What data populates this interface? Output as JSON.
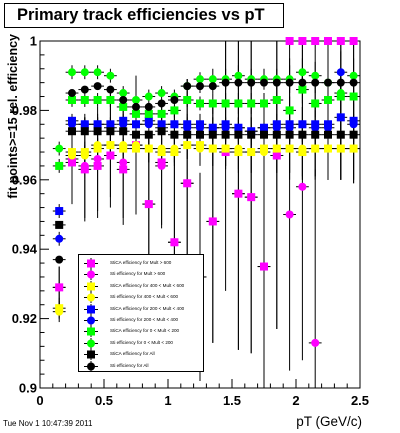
{
  "timestamp": "Tue Nov  1 10:47:39 2011",
  "chart_data": {
    "type": "scatter",
    "title": "Primary track efficiencies vs pT",
    "xlabel": "pT (GeV/c)",
    "ylabel": "fit points>=15 rel. efficiency",
    "xlim": [
      0,
      2.5
    ],
    "ylim": [
      0.9,
      1.0
    ],
    "x_ticks": [
      0,
      0.5,
      1,
      1.5,
      2,
      2.5
    ],
    "x_tick_labels": [
      "0",
      "0.5",
      "1",
      "1.5",
      "2",
      "2.5"
    ],
    "y_ticks": [
      0.9,
      0.92,
      0.94,
      0.96,
      0.98,
      1.0
    ],
    "y_tick_labels": [
      "0.9",
      "0.92",
      "0.94",
      "0.96",
      "0.98",
      "1"
    ],
    "grid": false,
    "legend_position": "bottom-left",
    "x": [
      0.15,
      0.25,
      0.35,
      0.45,
      0.55,
      0.65,
      0.75,
      0.85,
      0.95,
      1.05,
      1.15,
      1.25,
      1.35,
      1.45,
      1.55,
      1.65,
      1.75,
      1.85,
      1.95,
      2.05,
      2.15,
      2.25,
      2.35,
      2.45
    ],
    "series": [
      {
        "name": "StiCA efficiency  for Mult > 600",
        "marker": "square",
        "color": "#ff00ff",
        "values": [
          0.929,
          0.965,
          0.963,
          0.964,
          0.967,
          0.963,
          0.97,
          0.953,
          0.965,
          0.942,
          0.959,
          0.932,
          0.948,
          0.968,
          0.956,
          0.955,
          0.935,
          0.967,
          1.0,
          1.0,
          1.0,
          1.0,
          1.0,
          1.0
        ],
        "errors": [
          0.006,
          0.012,
          0.015,
          0.015,
          0.015,
          0.016,
          0.02,
          0.02,
          0.018,
          0.03,
          0.03,
          0.03,
          0.035,
          0.04,
          0.045,
          0.045,
          0.05,
          0.05,
          0.04,
          0.04,
          0.04,
          0.04,
          0.04,
          0.04
        ]
      },
      {
        "name": "Sti efficiency  for Mult > 600",
        "marker": "circle",
        "color": "#ff00ff",
        "values": [
          0.929,
          0.966,
          0.964,
          0.966,
          0.97,
          0.965,
          0.97,
          0.953,
          0.964,
          0.942,
          0.959,
          0.932,
          0.948,
          1.003,
          0.956,
          0.955,
          0.935,
          0.967,
          0.95,
          0.958,
          0.913,
          1.0,
          1.0,
          1.0
        ],
        "errors": [
          0.006,
          0.012,
          0.015,
          0.015,
          0.015,
          0.016,
          0.02,
          0.02,
          0.018,
          0.03,
          0.03,
          0.03,
          0.035,
          0.04,
          0.045,
          0.045,
          0.05,
          0.05,
          0.045,
          0.05,
          0.05,
          0.04,
          0.04,
          0.04
        ]
      },
      {
        "name": "StiCA efficiency  for 400 < Mult < 600",
        "marker": "square",
        "color": "#ffff00",
        "values": [
          0.923,
          0.968,
          0.968,
          0.969,
          0.97,
          0.969,
          0.969,
          0.969,
          0.968,
          0.968,
          0.97,
          0.97,
          0.969,
          0.969,
          0.968,
          0.968,
          0.969,
          0.969,
          0.969,
          0.968,
          0.969,
          0.969,
          0.969,
          0.969
        ],
        "errors": [
          0.003,
          0.003,
          0.003,
          0.003,
          0.003,
          0.003,
          0.003,
          0.004,
          0.004,
          0.004,
          0.004,
          0.005,
          0.005,
          0.005,
          0.006,
          0.006,
          0.006,
          0.007,
          0.007,
          0.008,
          0.008,
          0.009,
          0.009,
          0.01
        ]
      },
      {
        "name": "Sti efficiency  for 400 < Mult < 600",
        "marker": "circle",
        "color": "#ffff00",
        "values": [
          0.922,
          0.967,
          0.967,
          0.97,
          0.97,
          0.97,
          0.97,
          0.969,
          0.969,
          0.969,
          0.97,
          0.969,
          0.969,
          0.969,
          0.969,
          0.968,
          0.968,
          0.969,
          0.969,
          0.969,
          0.969,
          0.969,
          0.969,
          0.969
        ],
        "errors": [
          0.003,
          0.003,
          0.003,
          0.003,
          0.003,
          0.003,
          0.003,
          0.004,
          0.004,
          0.004,
          0.004,
          0.005,
          0.005,
          0.005,
          0.006,
          0.006,
          0.006,
          0.007,
          0.007,
          0.008,
          0.008,
          0.009,
          0.009,
          0.01
        ]
      },
      {
        "name": "StiCA efficiency  for 200 < Mult < 400",
        "marker": "square",
        "color": "#0000ff",
        "values": [
          0.951,
          0.977,
          0.976,
          0.976,
          0.976,
          0.977,
          0.976,
          0.977,
          0.976,
          0.976,
          0.976,
          0.976,
          0.975,
          0.976,
          0.975,
          0.974,
          0.975,
          0.976,
          0.976,
          0.976,
          0.976,
          0.976,
          0.978,
          0.977
        ],
        "errors": [
          0.002,
          0.002,
          0.002,
          0.002,
          0.002,
          0.002,
          0.002,
          0.002,
          0.002,
          0.003,
          0.003,
          0.003,
          0.003,
          0.003,
          0.003,
          0.004,
          0.004,
          0.004,
          0.004,
          0.005,
          0.005,
          0.005,
          0.006,
          0.006
        ]
      },
      {
        "name": "Sti efficiency  for 200 < Mult < 400",
        "marker": "circle",
        "color": "#0000ff",
        "values": [
          0.943,
          0.976,
          0.976,
          0.976,
          0.975,
          0.976,
          0.976,
          0.976,
          0.975,
          0.976,
          0.975,
          0.975,
          0.975,
          0.975,
          0.975,
          0.974,
          0.975,
          0.975,
          0.975,
          0.976,
          0.975,
          0.975,
          0.991,
          0.976
        ],
        "errors": [
          0.002,
          0.002,
          0.002,
          0.002,
          0.002,
          0.002,
          0.002,
          0.002,
          0.002,
          0.003,
          0.003,
          0.003,
          0.003,
          0.003,
          0.003,
          0.004,
          0.004,
          0.004,
          0.004,
          0.005,
          0.005,
          0.005,
          0.006,
          0.006
        ]
      },
      {
        "name": "StiCA efficiency  for 0 < Mult < 200",
        "marker": "square",
        "color": "#00ff00",
        "values": [
          0.964,
          0.983,
          0.983,
          0.983,
          0.983,
          0.981,
          0.979,
          0.979,
          0.979,
          0.98,
          0.983,
          0.982,
          0.982,
          0.982,
          0.982,
          0.982,
          0.982,
          0.983,
          0.98,
          0.986,
          0.982,
          0.983,
          0.984,
          0.984
        ],
        "errors": [
          0.002,
          0.002,
          0.002,
          0.002,
          0.002,
          0.002,
          0.002,
          0.002,
          0.002,
          0.002,
          0.002,
          0.002,
          0.003,
          0.003,
          0.003,
          0.003,
          0.003,
          0.003,
          0.004,
          0.004,
          0.004,
          0.004,
          0.005,
          0.005
        ]
      },
      {
        "name": "Sti efficiency  for 0 < Mult < 200",
        "marker": "circle",
        "color": "#00ff00",
        "values": [
          0.969,
          0.991,
          0.991,
          0.991,
          0.99,
          0.985,
          0.983,
          0.984,
          0.985,
          0.984,
          0.987,
          0.989,
          0.989,
          0.989,
          0.99,
          0.989,
          0.989,
          0.989,
          0.989,
          0.991,
          0.99,
          0.988,
          0.985,
          0.99
        ],
        "errors": [
          0.002,
          0.002,
          0.002,
          0.002,
          0.002,
          0.002,
          0.002,
          0.002,
          0.002,
          0.002,
          0.002,
          0.002,
          0.003,
          0.003,
          0.003,
          0.003,
          0.003,
          0.003,
          0.004,
          0.004,
          0.004,
          0.004,
          0.005,
          0.005
        ]
      },
      {
        "name": "StiCA efficiency  for All",
        "marker": "square",
        "color": "#000000",
        "values": [
          0.947,
          0.974,
          0.974,
          0.974,
          0.974,
          0.974,
          0.973,
          0.973,
          0.974,
          0.973,
          0.973,
          0.973,
          0.973,
          0.973,
          0.973,
          0.973,
          0.973,
          0.973,
          0.973,
          0.973,
          0.973,
          0.973,
          0.973,
          0.973
        ],
        "errors": [
          0.001,
          0.001,
          0.001,
          0.001,
          0.001,
          0.001,
          0.001,
          0.001,
          0.001,
          0.001,
          0.001,
          0.002,
          0.002,
          0.002,
          0.002,
          0.002,
          0.002,
          0.002,
          0.002,
          0.003,
          0.003,
          0.003,
          0.003,
          0.003
        ]
      },
      {
        "name": "Sti efficiency  for All",
        "marker": "circle",
        "color": "#000000",
        "values": [
          0.937,
          0.985,
          0.986,
          0.987,
          0.986,
          0.983,
          0.981,
          0.981,
          0.982,
          0.983,
          0.987,
          0.987,
          0.987,
          0.988,
          0.988,
          0.988,
          0.988,
          0.988,
          0.988,
          0.988,
          0.988,
          0.988,
          0.988,
          0.988
        ],
        "errors": [
          0.001,
          0.001,
          0.001,
          0.001,
          0.001,
          0.001,
          0.001,
          0.001,
          0.001,
          0.001,
          0.001,
          0.002,
          0.002,
          0.002,
          0.002,
          0.002,
          0.002,
          0.002,
          0.002,
          0.003,
          0.003,
          0.003,
          0.003,
          0.003
        ]
      }
    ]
  }
}
